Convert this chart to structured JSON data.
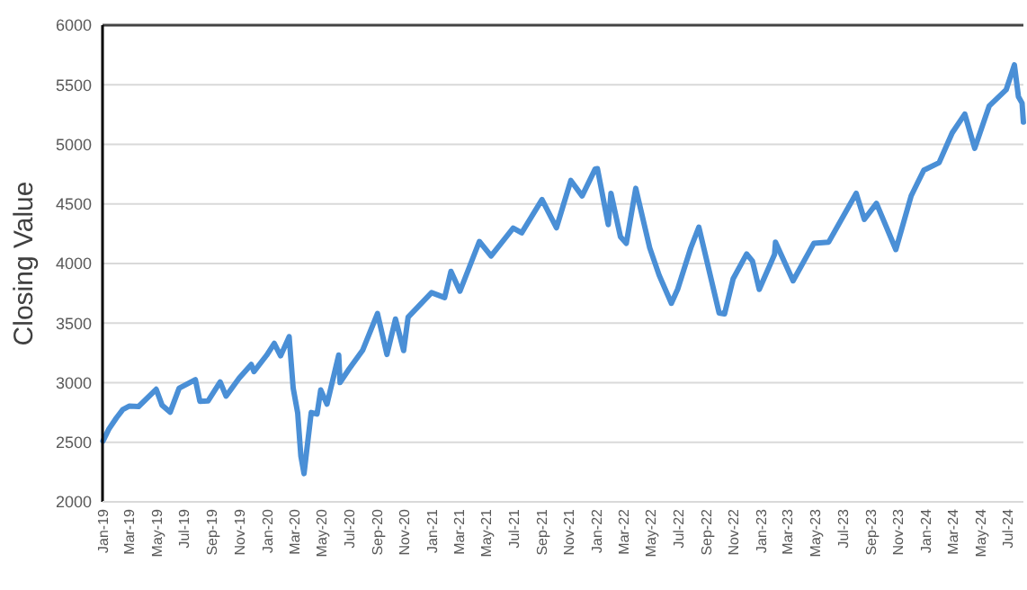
{
  "chart_data": {
    "type": "line",
    "ylabel": "Closing Value",
    "ylim": [
      2000,
      6000
    ],
    "yticks": [
      2000,
      2500,
      3000,
      3500,
      4000,
      4500,
      5000,
      5500,
      6000
    ],
    "grid": "y",
    "marker": "none",
    "line_style": "solid",
    "xlim": [
      "2019-01-01",
      "2024-08-05"
    ],
    "xticks": [
      {
        "value": "2019-01-01",
        "label": "Jan-19"
      },
      {
        "value": "2019-03-01",
        "label": "Mar-19"
      },
      {
        "value": "2019-05-01",
        "label": "May-19"
      },
      {
        "value": "2019-07-01",
        "label": "Jul-19"
      },
      {
        "value": "2019-09-01",
        "label": "Sep-19"
      },
      {
        "value": "2019-11-01",
        "label": "Nov-19"
      },
      {
        "value": "2020-01-01",
        "label": "Jan-20"
      },
      {
        "value": "2020-03-01",
        "label": "Mar-20"
      },
      {
        "value": "2020-05-01",
        "label": "May-20"
      },
      {
        "value": "2020-07-01",
        "label": "Jul-20"
      },
      {
        "value": "2020-09-01",
        "label": "Sep-20"
      },
      {
        "value": "2020-11-01",
        "label": "Nov-20"
      },
      {
        "value": "2021-01-01",
        "label": "Jan-21"
      },
      {
        "value": "2021-03-01",
        "label": "Mar-21"
      },
      {
        "value": "2021-05-01",
        "label": "May-21"
      },
      {
        "value": "2021-07-01",
        "label": "Jul-21"
      },
      {
        "value": "2021-09-01",
        "label": "Sep-21"
      },
      {
        "value": "2021-11-01",
        "label": "Nov-21"
      },
      {
        "value": "2022-01-01",
        "label": "Jan-22"
      },
      {
        "value": "2022-03-01",
        "label": "Mar-22"
      },
      {
        "value": "2022-05-01",
        "label": "May-22"
      },
      {
        "value": "2022-07-01",
        "label": "Jul-22"
      },
      {
        "value": "2022-09-01",
        "label": "Sep-22"
      },
      {
        "value": "2022-11-01",
        "label": "Nov-22"
      },
      {
        "value": "2023-01-01",
        "label": "Jan-23"
      },
      {
        "value": "2023-03-01",
        "label": "Mar-23"
      },
      {
        "value": "2023-05-01",
        "label": "May-23"
      },
      {
        "value": "2023-07-01",
        "label": "Jul-23"
      },
      {
        "value": "2023-09-01",
        "label": "Sep-23"
      },
      {
        "value": "2023-11-01",
        "label": "Nov-23"
      },
      {
        "value": "2024-01-01",
        "label": "Jan-24"
      },
      {
        "value": "2024-03-01",
        "label": "Mar-24"
      },
      {
        "value": "2024-05-01",
        "label": "May-24"
      },
      {
        "value": "2024-07-01",
        "label": "Jul-24"
      }
    ],
    "x": [
      "2019-01-02",
      "2019-01-15",
      "2019-02-01",
      "2019-02-15",
      "2019-03-01",
      "2019-03-22",
      "2019-04-30",
      "2019-05-13",
      "2019-05-31",
      "2019-06-20",
      "2019-07-26",
      "2019-08-05",
      "2019-08-23",
      "2019-09-19",
      "2019-10-02",
      "2019-10-31",
      "2019-11-27",
      "2019-12-03",
      "2019-12-31",
      "2020-01-17",
      "2020-01-31",
      "2020-02-19",
      "2020-02-28",
      "2020-03-09",
      "2020-03-16",
      "2020-03-23",
      "2020-04-08",
      "2020-04-21",
      "2020-04-29",
      "2020-05-13",
      "2020-06-08",
      "2020-06-11",
      "2020-07-01",
      "2020-07-31",
      "2020-09-02",
      "2020-09-23",
      "2020-10-12",
      "2020-10-30",
      "2020-11-09",
      "2020-12-31",
      "2021-01-29",
      "2021-02-12",
      "2021-03-04",
      "2021-04-16",
      "2021-05-12",
      "2021-06-30",
      "2021-07-19",
      "2021-09-02",
      "2021-10-04",
      "2021-11-05",
      "2021-11-30",
      "2021-12-29",
      "2022-01-03",
      "2022-01-27",
      "2022-02-02",
      "2022-02-23",
      "2022-03-08",
      "2022-03-29",
      "2022-04-29",
      "2022-05-20",
      "2022-06-16",
      "2022-06-30",
      "2022-07-29",
      "2022-08-16",
      "2022-09-30",
      "2022-10-12",
      "2022-10-31",
      "2022-11-30",
      "2022-12-13",
      "2022-12-28",
      "2023-01-31",
      "2023-02-02",
      "2023-03-13",
      "2023-04-28",
      "2023-05-31",
      "2023-07-31",
      "2023-08-18",
      "2023-09-14",
      "2023-10-27",
      "2023-11-30",
      "2023-12-28",
      "2024-01-31",
      "2024-02-29",
      "2024-03-28",
      "2024-04-19",
      "2024-05-21",
      "2024-06-28",
      "2024-07-16",
      "2024-07-25",
      "2024-08-02",
      "2024-08-05"
    ],
    "series": [
      {
        "color": "#4a8fd6",
        "values": [
          2510,
          2610,
          2706,
          2775,
          2803,
          2800,
          2945,
          2812,
          2752,
          2954,
          3025,
          2844,
          2847,
          3006,
          2887,
          3037,
          3153,
          3093,
          3230,
          3330,
          3225,
          3386,
          2954,
          2746,
          2386,
          2237,
          2750,
          2737,
          2939,
          2820,
          3232,
          3002,
          3115,
          3271,
          3580,
          3237,
          3534,
          3270,
          3550,
          3756,
          3714,
          3934,
          3768,
          4185,
          4063,
          4297,
          4258,
          4537,
          4300,
          4697,
          4567,
          4793,
          4796,
          4326,
          4589,
          4225,
          4170,
          4631,
          4131,
          3901,
          3666,
          3785,
          4130,
          4305,
          3585,
          3577,
          3872,
          4080,
          4019,
          3783,
          4077,
          4179,
          3855,
          4169,
          4180,
          4589,
          4370,
          4505,
          4117,
          4568,
          4783,
          4846,
          5096,
          5254,
          4967,
          5321,
          5460,
          5667,
          5400,
          5346,
          5186
        ]
      }
    ]
  }
}
